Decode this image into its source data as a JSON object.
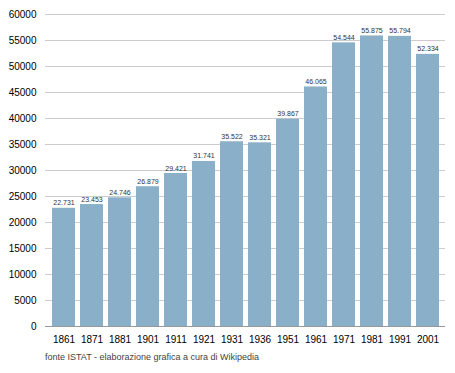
{
  "chart_data": {
    "type": "bar",
    "categories": [
      "1861",
      "1871",
      "1881",
      "1901",
      "1911",
      "1921",
      "1931",
      "1936",
      "1951",
      "1961",
      "1971",
      "1981",
      "1991",
      "2001"
    ],
    "values": [
      22731,
      23453,
      24746,
      26879,
      29421,
      31741,
      35522,
      35321,
      39867,
      46065,
      54544,
      55875,
      55794,
      52334
    ],
    "value_labels": [
      "22.731",
      "23.453",
      "24.746",
      "26.879",
      "29.421",
      "31.741",
      "35.522",
      "35.321",
      "39.867",
      "46.065",
      "54.544",
      "55.875",
      "55.794",
      "52.334"
    ],
    "data_labels": true,
    "color": "#8aafc8",
    "ylim": [
      0,
      60000
    ],
    "yticks": [
      0,
      5000,
      10000,
      15000,
      20000,
      25000,
      30000,
      35000,
      40000,
      45000,
      50000,
      55000,
      60000
    ],
    "grid": true,
    "caption": "fonte ISTAT  -  elaborazione grafica a cura di Wikipedia"
  }
}
